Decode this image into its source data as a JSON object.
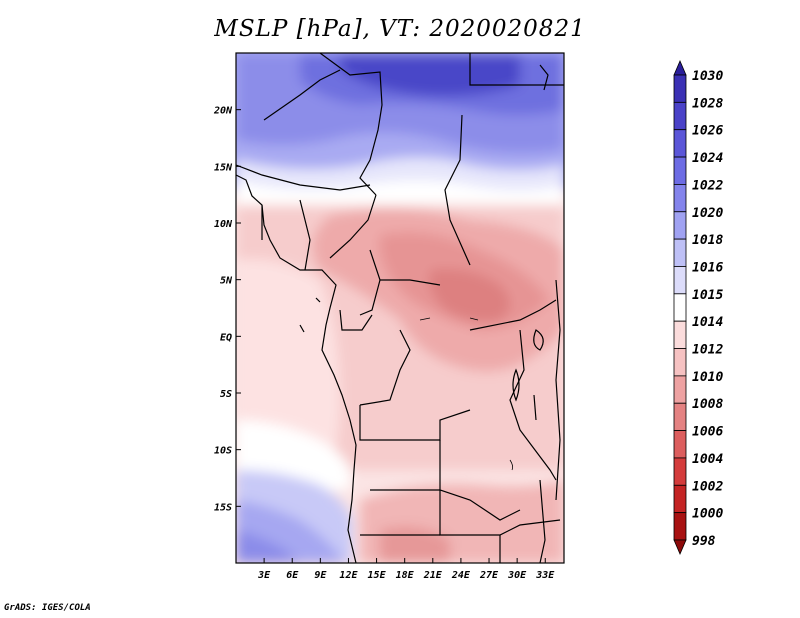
{
  "title": "MSLP [hPa], VT: 2020020821",
  "footer": "GrADS: IGES/COLA",
  "map": {
    "lon_range": [
      0,
      35
    ],
    "lat_range": [
      -20,
      25
    ],
    "x_tick_labels": [
      "3E",
      "6E",
      "9E",
      "12E",
      "15E",
      "18E",
      "21E",
      "24E",
      "27E",
      "30E",
      "33E"
    ],
    "x_tick_values": [
      3,
      6,
      9,
      12,
      15,
      18,
      21,
      24,
      27,
      30,
      33
    ],
    "y_tick_labels": [
      "20N",
      "15N",
      "10N",
      "5N",
      "EQ",
      "5S",
      "10S",
      "15S"
    ],
    "y_tick_values": [
      20,
      15,
      10,
      5,
      0,
      -5,
      -10,
      -15
    ]
  },
  "colorbar": {
    "labels": [
      "1030",
      "1028",
      "1026",
      "1024",
      "1022",
      "1020",
      "1018",
      "1016",
      "1015",
      "1014",
      "1012",
      "1010",
      "1008",
      "1006",
      "1004",
      "1002",
      "1000",
      "998"
    ],
    "colors_top_to_bottom": [
      "#2a1e9a",
      "#3a30b4",
      "#4a42c8",
      "#5b56d8",
      "#6d6ce4",
      "#8484ec",
      "#a0a2f2",
      "#bec0f6",
      "#dcdcfa",
      "#ffffff",
      "#fbdcdc",
      "#f6c2c2",
      "#eea2a2",
      "#e48282",
      "#dc5e5e",
      "#d43c3c",
      "#c42424",
      "#a81212",
      "#8c0a0a"
    ]
  },
  "chart_data": {
    "type": "heatmap",
    "title": "MSLP [hPa], VT: 2020020821",
    "units": "hPa",
    "valid_time": "2020020821",
    "x_axis": "longitude (degrees E)",
    "y_axis": "latitude",
    "xlim": [
      0,
      35
    ],
    "ylim": [
      -20,
      25
    ],
    "levels": [
      998,
      1000,
      1002,
      1004,
      1006,
      1008,
      1010,
      1012,
      1014,
      1015,
      1016,
      1018,
      1020,
      1022,
      1024,
      1026,
      1028,
      1030
    ],
    "samples": [
      {
        "lon": 20,
        "lat": 23,
        "value": 1026
      },
      {
        "lon": 8,
        "lat": 20,
        "value": 1022
      },
      {
        "lon": 30,
        "lat": 18,
        "value": 1020
      },
      {
        "lon": 20,
        "lat": 15,
        "value": 1017
      },
      {
        "lon": 15,
        "lat": 12,
        "value": 1014
      },
      {
        "lon": 20,
        "lat": 8,
        "value": 1009
      },
      {
        "lon": 25,
        "lat": 4,
        "value": 1007
      },
      {
        "lon": 24,
        "lat": 0,
        "value": 1009
      },
      {
        "lon": 4,
        "lat": 0,
        "value": 1012
      },
      {
        "lon": 20,
        "lat": -10,
        "value": 1012
      },
      {
        "lon": 5,
        "lat": -10,
        "value": 1015
      },
      {
        "lon": 3,
        "lat": -16,
        "value": 1017
      },
      {
        "lon": 2,
        "lat": -19,
        "value": 1020
      },
      {
        "lon": 20,
        "lat": -19,
        "value": 1008
      }
    ]
  }
}
